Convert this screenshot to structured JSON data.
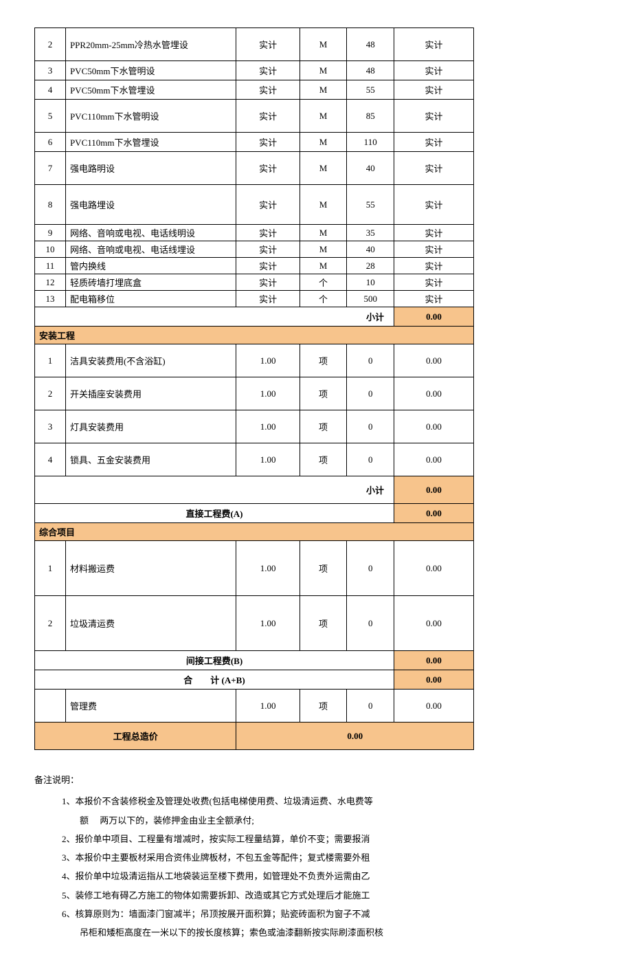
{
  "section1": {
    "rows": [
      {
        "idx": "2",
        "desc": "PPR20mm-25mm冷热水管埋设",
        "qty": "实计",
        "unit": "M",
        "price": "48",
        "total": "实计",
        "h": "tall"
      },
      {
        "idx": "3",
        "desc": "PVC50mm下水管明设",
        "qty": "实计",
        "unit": "M",
        "price": "48",
        "total": "实计",
        "h": ""
      },
      {
        "idx": "4",
        "desc": "PVC50mm下水管埋设",
        "qty": "实计",
        "unit": "M",
        "price": "55",
        "total": "实计",
        "h": ""
      },
      {
        "idx": "5",
        "desc": "PVC110mm下水管明设",
        "qty": "实计",
        "unit": "M",
        "price": "85",
        "total": "实计",
        "h": "tall"
      },
      {
        "idx": "6",
        "desc": "PVC110mm下水管埋设",
        "qty": "实计",
        "unit": "M",
        "price": "110",
        "total": "实计",
        "h": ""
      },
      {
        "idx": "7",
        "desc": "强电路明设",
        "qty": "实计",
        "unit": "M",
        "price": "40",
        "total": "实计",
        "h": "tall"
      },
      {
        "idx": "8",
        "desc": "强电路埋设",
        "qty": "实计",
        "unit": "M",
        "price": "55",
        "total": "实计",
        "h": "xtall"
      },
      {
        "idx": "9",
        "desc": "网络、音响或电视、电话线明设",
        "qty": "实计",
        "unit": "M",
        "price": "35",
        "total": "实计",
        "h": "short"
      },
      {
        "idx": "10",
        "desc": "网络、音响或电视、电话线埋设",
        "qty": "实计",
        "unit": "M",
        "price": "40",
        "total": "实计",
        "h": "short"
      },
      {
        "idx": "11",
        "desc": "管内换线",
        "qty": "实计",
        "unit": "M",
        "price": "28",
        "total": "实计",
        "h": "short"
      },
      {
        "idx": "12",
        "desc": "轻质砖墙打埋底盒",
        "qty": "实计",
        "unit": "个",
        "price": "10",
        "total": "实计",
        "h": "short"
      },
      {
        "idx": "13",
        "desc": "配电箱移位",
        "qty": "实计",
        "unit": "个",
        "price": "500",
        "total": "实计",
        "h": "short"
      }
    ],
    "subtotal_label": "小计",
    "subtotal_value": "0.00"
  },
  "section2": {
    "header": "安装工程",
    "rows": [
      {
        "idx": "1",
        "desc": "洁具安装费用(不含浴缸)",
        "qty": "1.00",
        "unit": "项",
        "price": "0",
        "total": "0.00",
        "h": "tall"
      },
      {
        "idx": "2",
        "desc": "开关插座安装费用",
        "qty": "1.00",
        "unit": "项",
        "price": "0",
        "total": "0.00",
        "h": "tall"
      },
      {
        "idx": "3",
        "desc": "灯具安装费用",
        "qty": "1.00",
        "unit": "项",
        "price": "0",
        "total": "0.00",
        "h": "tall"
      },
      {
        "idx": "4",
        "desc": "锁具、五金安装费用",
        "qty": "1.00",
        "unit": "项",
        "price": "0",
        "total": "0.00",
        "h": "tall"
      }
    ],
    "subtotal_label": "小计",
    "subtotal_value": "0.00"
  },
  "direct_cost": {
    "label": "直接工程费(A)",
    "value": "0.00"
  },
  "section3": {
    "header": "综合项目",
    "rows": [
      {
        "idx": "1",
        "desc": "材料搬运费",
        "qty": "1.00",
        "unit": "项",
        "price": "0",
        "total": "0.00",
        "h": "xxtall"
      },
      {
        "idx": "2",
        "desc": "垃圾清运费",
        "qty": "1.00",
        "unit": "项",
        "price": "0",
        "total": "0.00",
        "h": "xxtall"
      }
    ]
  },
  "indirect_cost": {
    "label": "间接工程费(B)",
    "value": "0.00"
  },
  "sum_ab": {
    "label": "合　　计 (A+B)",
    "value": "0.00"
  },
  "mgmt": {
    "idx": "",
    "desc": "管理费",
    "qty": "1.00",
    "unit": "项",
    "price": "0",
    "total": "0.00"
  },
  "grand_total": {
    "label": "工程总造价",
    "value": "0.00"
  },
  "notes": {
    "title": "备注说明：",
    "items": [
      "1、本报价不含装修税金及管理处收费(包括电梯使用费、垃圾清运费、水电费等",
      "额　 两万以下的，装修押金由业主全额承付;",
      "2、报价单中项目、工程量有增减时，按实际工程量结算，单价不变；需要报消",
      "3、本报价中主要板材采用合资伟业牌板材，不包五金等配件；复式楼需要外租",
      "4、报价单中垃圾清运指从工地袋装运至楼下费用，如管理处不负责外运需由乙",
      "5、装修工地有碍乙方施工的物体如需要拆卸、改造或其它方式处理后才能施工",
      "6、核算原则为：墙面漆门窗减半；吊顶按展开面积算；贴瓷砖面积为窗子不减",
      "吊柜和矮柜高度在一米以下的按长度核算；索色或油漆翻新按实际刷漆面积核"
    ]
  },
  "colors": {
    "highlight": "#f7c48c",
    "border": "#000000"
  }
}
